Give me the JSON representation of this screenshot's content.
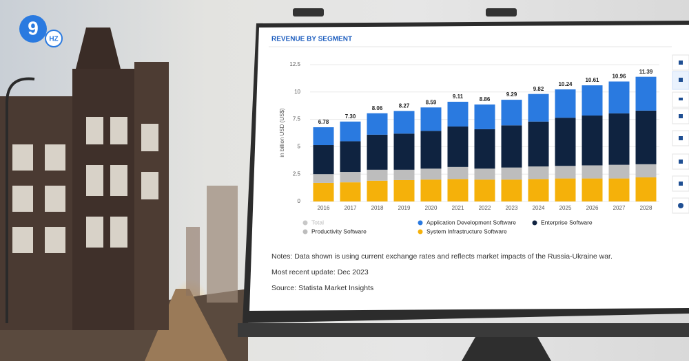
{
  "logo": {
    "main": "9",
    "sub": "HZ"
  },
  "chart_data": {
    "type": "stacked_bar",
    "title": "REVENUE BY SEGMENT",
    "y_label": "in billion USD (US$)",
    "categories": [
      "2016",
      "2017",
      "2018",
      "2019",
      "2020",
      "2021",
      "2022",
      "2023",
      "2024",
      "2025",
      "2026",
      "2027",
      "2028"
    ],
    "ylim": [
      0,
      12.5
    ],
    "yticks": [
      0,
      2.5,
      5,
      7.5,
      10,
      12.5
    ],
    "grid": true,
    "series": [
      {
        "name": "System Infrastructure Software",
        "color": "#f5b10a",
        "values": [
          1.7,
          1.75,
          1.9,
          1.95,
          2.0,
          2.05,
          2.0,
          2.0,
          2.05,
          2.1,
          2.1,
          2.1,
          2.2
        ]
      },
      {
        "name": "Productivity Software",
        "color": "#bdbdbd",
        "values": [
          0.8,
          0.95,
          1.0,
          0.95,
          1.0,
          1.1,
          1.0,
          1.1,
          1.15,
          1.15,
          1.2,
          1.25,
          1.2
        ]
      },
      {
        "name": "Enterprise Software",
        "color": "#0f2340",
        "values": [
          2.65,
          2.8,
          3.2,
          3.3,
          3.45,
          3.7,
          3.6,
          3.85,
          4.1,
          4.4,
          4.55,
          4.7,
          4.9
        ]
      },
      {
        "name": "Application Development Software",
        "color": "#2a7ae0",
        "values": [
          1.63,
          1.8,
          1.96,
          2.07,
          2.14,
          2.26,
          2.26,
          2.34,
          2.52,
          2.59,
          2.76,
          2.91,
          3.09
        ]
      },
      {
        "name": "Total",
        "color": "#c8c8c8",
        "hidden": true,
        "values": [
          6.78,
          7.3,
          8.06,
          8.27,
          8.59,
          9.11,
          8.86,
          9.29,
          9.82,
          10.24,
          10.61,
          10.96,
          11.39
        ],
        "value_labels": [
          "6.78",
          "7.30",
          "8.06",
          "8.27",
          "8.59",
          "9.11",
          "8.86",
          "9.29",
          "9.82",
          "10.24",
          "10.61",
          "10.96",
          "11.39"
        ]
      }
    ],
    "notes": [
      "Notes: Data shown is using current exchange rates and reflects market impacts of the Russia-Ukraine war.",
      "Most recent update: Dec 2023",
      "Source: Statista Market Insights"
    ]
  }
}
